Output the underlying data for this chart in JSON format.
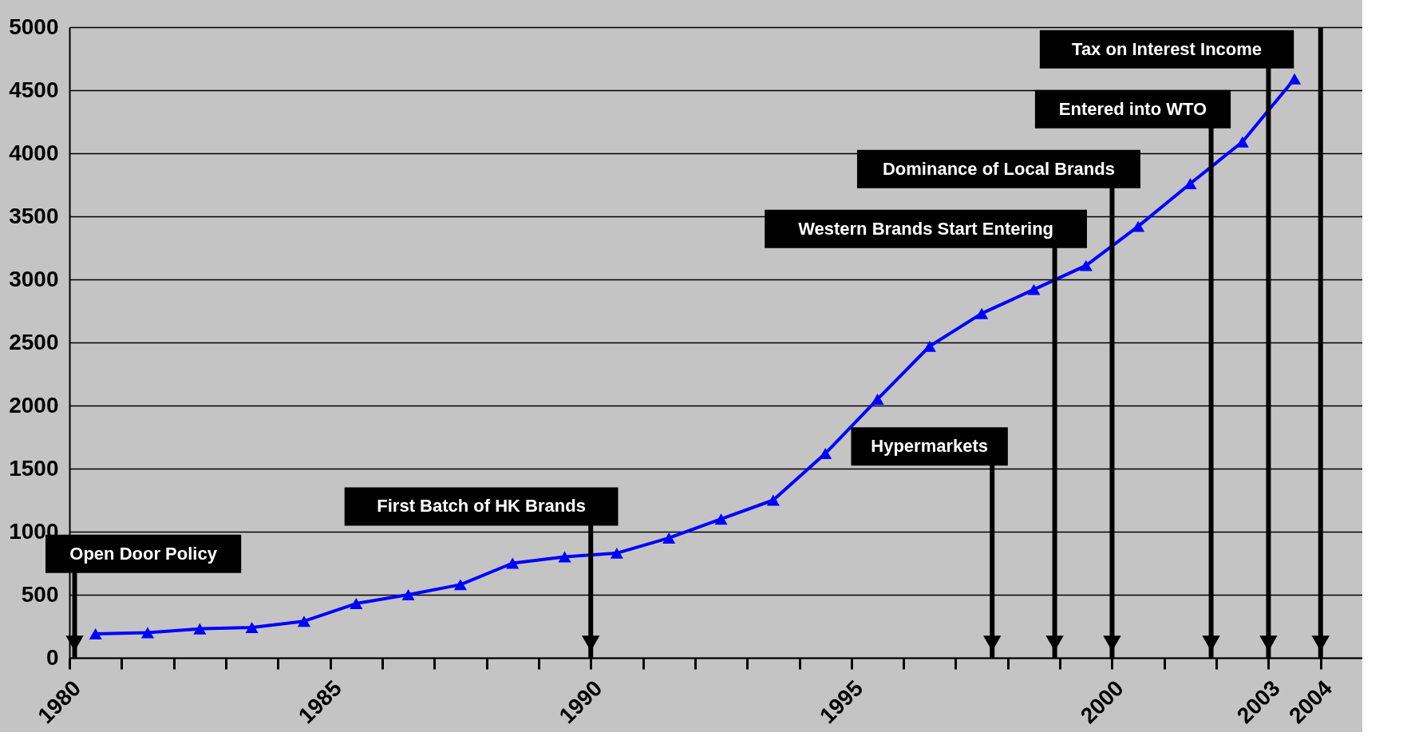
{
  "chart_data": {
    "type": "line",
    "x": [
      1980.5,
      1981.5,
      1982.5,
      1983.5,
      1984.5,
      1985.5,
      1986.5,
      1987.5,
      1988.5,
      1989.5,
      1990.5,
      1991.5,
      1992.5,
      1993.5,
      1994.5,
      1995.5,
      1996.5,
      1997.5,
      1998.5,
      1999.5,
      2000.5,
      2001.5,
      2002.5,
      2003.5
    ],
    "series": [
      {
        "color": "#0000ff",
        "values": [
          190,
          200,
          230,
          240,
          290,
          430,
          500,
          580,
          750,
          800,
          830,
          950,
          1100,
          1250,
          1620,
          2050,
          2470,
          2730,
          2920,
          3110,
          3420,
          3760,
          4090,
          4590
        ]
      }
    ],
    "marker": "triangle",
    "line_style": "solid",
    "grid": "y",
    "legend": false,
    "xlim": [
      1980,
      2004.8
    ],
    "ylim": [
      0,
      5000
    ],
    "xticks": [
      1980,
      {
        "value": 1981,
        "label": null
      },
      {
        "value": 1982,
        "label": null
      },
      {
        "value": 1983,
        "label": null
      },
      {
        "value": 1984,
        "label": null
      },
      1985,
      {
        "value": 1986,
        "label": null
      },
      {
        "value": 1987,
        "label": null
      },
      {
        "value": 1988,
        "label": null
      },
      {
        "value": 1989,
        "label": null
      },
      1990,
      {
        "value": 1991,
        "label": null
      },
      {
        "value": 1992,
        "label": null
      },
      {
        "value": 1993,
        "label": null
      },
      {
        "value": 1994,
        "label": null
      },
      1995,
      {
        "value": 1996,
        "label": null
      },
      {
        "value": 1997,
        "label": null
      },
      {
        "value": 1998,
        "label": null
      },
      {
        "value": 1999,
        "label": null
      },
      2000,
      {
        "value": 2001,
        "label": null
      },
      {
        "value": 2002,
        "label": null
      },
      2003,
      2004
    ],
    "yticks": [
      0,
      500,
      1000,
      1500,
      2000,
      2500,
      3000,
      3500,
      4000,
      4500,
      5000
    ],
    "ref_lines": [
      {
        "axis": "x",
        "value": 1980.1,
        "label": "Open Door Policy"
      },
      {
        "axis": "x",
        "value": 1990,
        "label": "First Batch of HK Brands"
      },
      {
        "axis": "x",
        "value": 1997.7,
        "label": "Hypermarkets"
      },
      {
        "axis": "x",
        "value": 1998.9,
        "label": "Western Brands Start Entering"
      },
      {
        "axis": "x",
        "value": 2000,
        "label": "Dominance of Local Brands"
      },
      {
        "axis": "x",
        "value": 2001.9,
        "label": "Entered into WTO"
      },
      {
        "axis": "x",
        "value": 2003,
        "label": "Tax on Interest Income"
      },
      {
        "axis": "x",
        "value": 2004
      }
    ]
  }
}
